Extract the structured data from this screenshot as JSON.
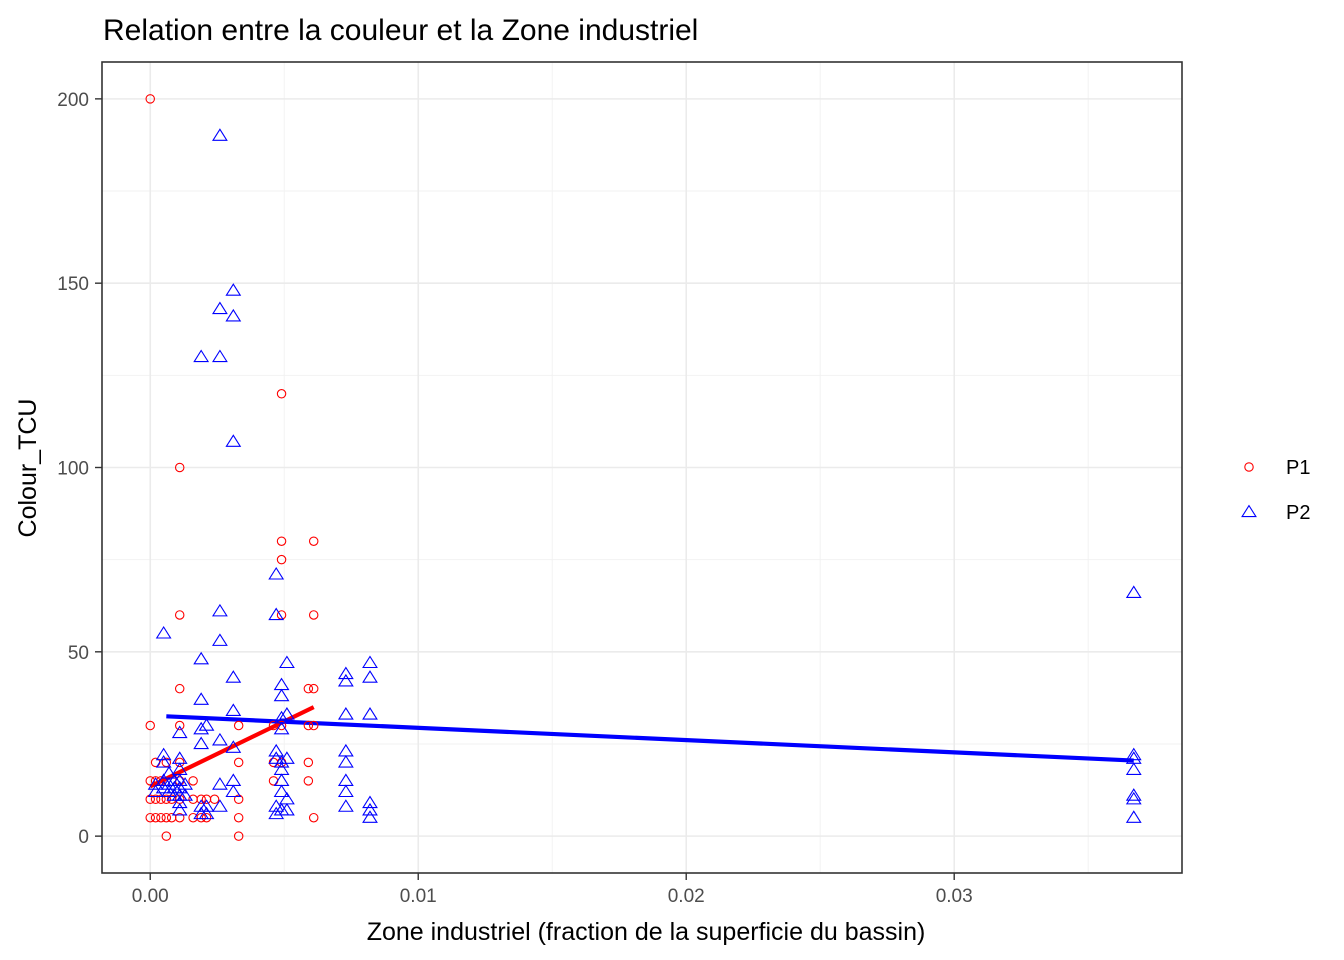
{
  "chart_data": {
    "type": "scatter",
    "title": "Relation entre la couleur et la Zone industriel",
    "xlabel": "Zone industriel (fraction de la superficie du bassin)",
    "ylabel": "Colour_TCU",
    "xlim": [
      -0.0018,
      0.0385
    ],
    "ylim": [
      -10,
      210
    ],
    "x_ticks": [
      0.0,
      0.01,
      0.02,
      0.03
    ],
    "x_tick_labels": [
      "0.00",
      "0.01",
      "0.02",
      "0.03"
    ],
    "y_ticks": [
      0,
      50,
      100,
      150,
      200
    ],
    "y_tick_labels": [
      "0",
      "50",
      "100",
      "150",
      "200"
    ],
    "grid": true,
    "legend_position": "right",
    "series": [
      {
        "name": "P1",
        "color": "#ff0000",
        "marker": "circle",
        "points": [
          [
            0.0,
            200
          ],
          [
            0.0,
            30
          ],
          [
            0.0,
            15
          ],
          [
            0.0,
            10
          ],
          [
            0.0,
            5
          ],
          [
            0.0002,
            20
          ],
          [
            0.0002,
            15
          ],
          [
            0.0002,
            10
          ],
          [
            0.0002,
            5
          ],
          [
            0.0004,
            15
          ],
          [
            0.0004,
            10
          ],
          [
            0.0004,
            5
          ],
          [
            0.0006,
            20
          ],
          [
            0.0006,
            10
          ],
          [
            0.0006,
            5
          ],
          [
            0.0006,
            0
          ],
          [
            0.0008,
            10
          ],
          [
            0.0008,
            5
          ],
          [
            0.0011,
            100
          ],
          [
            0.0011,
            60
          ],
          [
            0.0011,
            40
          ],
          [
            0.0011,
            30
          ],
          [
            0.0011,
            20
          ],
          [
            0.0011,
            15
          ],
          [
            0.0011,
            10
          ],
          [
            0.0011,
            5
          ],
          [
            0.0016,
            15
          ],
          [
            0.0016,
            10
          ],
          [
            0.0016,
            5
          ],
          [
            0.0019,
            10
          ],
          [
            0.0019,
            5
          ],
          [
            0.0021,
            10
          ],
          [
            0.0021,
            5
          ],
          [
            0.0024,
            10
          ],
          [
            0.0033,
            30
          ],
          [
            0.0033,
            20
          ],
          [
            0.0033,
            10
          ],
          [
            0.0033,
            5
          ],
          [
            0.0033,
            0
          ],
          [
            0.0046,
            30
          ],
          [
            0.0046,
            20
          ],
          [
            0.0046,
            15
          ],
          [
            0.0049,
            120
          ],
          [
            0.0049,
            80
          ],
          [
            0.0049,
            75
          ],
          [
            0.0049,
            60
          ],
          [
            0.0049,
            30
          ],
          [
            0.0049,
            20
          ],
          [
            0.0059,
            40
          ],
          [
            0.0059,
            30
          ],
          [
            0.0059,
            20
          ],
          [
            0.0059,
            15
          ],
          [
            0.0061,
            80
          ],
          [
            0.0061,
            60
          ],
          [
            0.0061,
            40
          ],
          [
            0.0061,
            30
          ],
          [
            0.0061,
            5
          ]
        ],
        "fit_line": [
          [
            0.0,
            13.5
          ],
          [
            0.0061,
            35
          ]
        ]
      },
      {
        "name": "P2",
        "color": "#0000ff",
        "marker": "triangle",
        "points": [
          [
            0.0002,
            14
          ],
          [
            0.0002,
            12
          ],
          [
            0.0005,
            55
          ],
          [
            0.0005,
            22
          ],
          [
            0.0005,
            20
          ],
          [
            0.0005,
            15
          ],
          [
            0.0005,
            13
          ],
          [
            0.0007,
            17
          ],
          [
            0.0007,
            14
          ],
          [
            0.0007,
            12
          ],
          [
            0.0009,
            15
          ],
          [
            0.0009,
            13
          ],
          [
            0.0009,
            11
          ],
          [
            0.0011,
            28
          ],
          [
            0.0011,
            21
          ],
          [
            0.0011,
            18
          ],
          [
            0.0011,
            15
          ],
          [
            0.0011,
            13
          ],
          [
            0.0011,
            11
          ],
          [
            0.0011,
            9
          ],
          [
            0.0011,
            7
          ],
          [
            0.0013,
            14
          ],
          [
            0.0013,
            11
          ],
          [
            0.0019,
            130
          ],
          [
            0.0019,
            48
          ],
          [
            0.0019,
            37
          ],
          [
            0.0019,
            29
          ],
          [
            0.0019,
            25
          ],
          [
            0.0019,
            8
          ],
          [
            0.0019,
            6
          ],
          [
            0.0021,
            30
          ],
          [
            0.0021,
            8
          ],
          [
            0.0021,
            6
          ],
          [
            0.0026,
            190
          ],
          [
            0.0026,
            143
          ],
          [
            0.0026,
            130
          ],
          [
            0.0026,
            61
          ],
          [
            0.0026,
            53
          ],
          [
            0.0026,
            26
          ],
          [
            0.0026,
            14
          ],
          [
            0.0026,
            8
          ],
          [
            0.0031,
            148
          ],
          [
            0.0031,
            141
          ],
          [
            0.0031,
            107
          ],
          [
            0.0031,
            43
          ],
          [
            0.0031,
            34
          ],
          [
            0.0031,
            24
          ],
          [
            0.0031,
            15
          ],
          [
            0.0031,
            12
          ],
          [
            0.0047,
            71
          ],
          [
            0.0047,
            60
          ],
          [
            0.0047,
            23
          ],
          [
            0.0047,
            21
          ],
          [
            0.0047,
            8
          ],
          [
            0.0047,
            6
          ],
          [
            0.0049,
            41
          ],
          [
            0.0049,
            38
          ],
          [
            0.0049,
            32
          ],
          [
            0.0049,
            29
          ],
          [
            0.0049,
            20
          ],
          [
            0.0049,
            18
          ],
          [
            0.0049,
            15
          ],
          [
            0.0049,
            12
          ],
          [
            0.0049,
            7
          ],
          [
            0.0051,
            47
          ],
          [
            0.0051,
            33
          ],
          [
            0.0051,
            21
          ],
          [
            0.0051,
            10
          ],
          [
            0.0051,
            7
          ],
          [
            0.0073,
            44
          ],
          [
            0.0073,
            42
          ],
          [
            0.0073,
            33
          ],
          [
            0.0073,
            23
          ],
          [
            0.0073,
            20
          ],
          [
            0.0073,
            15
          ],
          [
            0.0073,
            12
          ],
          [
            0.0073,
            8
          ],
          [
            0.0082,
            47
          ],
          [
            0.0082,
            43
          ],
          [
            0.0082,
            33
          ],
          [
            0.0082,
            9
          ],
          [
            0.0082,
            7
          ],
          [
            0.0082,
            5
          ],
          [
            0.0367,
            66
          ],
          [
            0.0367,
            22
          ],
          [
            0.0367,
            21
          ],
          [
            0.0367,
            18
          ],
          [
            0.0367,
            11
          ],
          [
            0.0367,
            10
          ],
          [
            0.0367,
            5
          ]
        ],
        "fit_line": [
          [
            0.0006,
            32.5
          ],
          [
            0.0367,
            20.5
          ]
        ]
      }
    ]
  }
}
